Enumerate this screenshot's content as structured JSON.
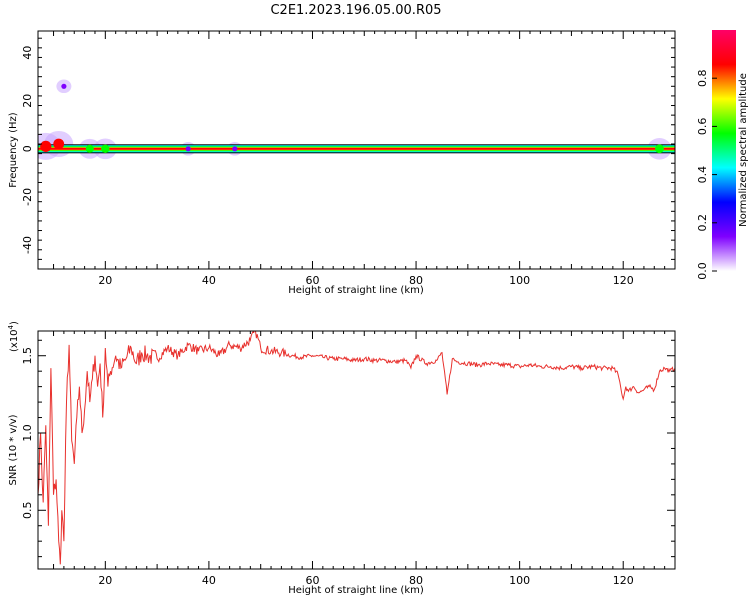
{
  "title": "C2E1.2023.196.05.00.R05",
  "chart_data": [
    {
      "type": "heatmap",
      "xlabel": "Height of straight line (km)",
      "ylabel": "Frequency (Hz)",
      "xlim": [
        7,
        130
      ],
      "ylim": [
        -50,
        49
      ],
      "xticks": [
        20,
        40,
        60,
        80,
        100,
        120
      ],
      "yticks": [
        40,
        20,
        0,
        -20,
        -40
      ],
      "colorbar": {
        "label": "Normalized spectral amplitude",
        "range": [
          0,
          1
        ],
        "ticks": [
          "0.0",
          "0.2",
          "0.4",
          "0.6",
          "0.8"
        ],
        "colors": [
          "#ffffff",
          "#7f00ff",
          "#0000ff",
          "#00ffff",
          "#00ff00",
          "#ffff00",
          "#ff0000",
          "#ff0066"
        ]
      },
      "main_band": {
        "frequency": 0,
        "x_range": [
          7,
          130
        ],
        "amplitude": 1.0
      },
      "features": [
        {
          "x": 8.5,
          "frequency": 1,
          "amplitude": 0.9
        },
        {
          "x": 11,
          "frequency": 2,
          "amplitude": 0.85
        },
        {
          "x": 12,
          "frequency": 26,
          "amplitude": 0.15
        },
        {
          "x": 17,
          "frequency": 0,
          "amplitude": 0.5
        },
        {
          "x": 20,
          "frequency": 0,
          "amplitude": 0.55
        },
        {
          "x": 36,
          "frequency": 0,
          "amplitude": 0.15
        },
        {
          "x": 45,
          "frequency": 0,
          "amplitude": 0.15
        },
        {
          "x": 127,
          "frequency": 0,
          "amplitude": 0.6
        }
      ]
    },
    {
      "type": "line",
      "xlabel": "Height of straight line (km)",
      "ylabel": "SNR (10 * v/v)",
      "y_multiplier": "(x10",
      "y_multiplier_exp": "4",
      "y_multiplier_close": ")",
      "xlim": [
        7,
        130
      ],
      "ylim": [
        0.12,
        1.66
      ],
      "xticks": [
        20,
        40,
        60,
        80,
        100,
        120
      ],
      "yticks": [
        "0.5",
        "1.0",
        "1.5"
      ],
      "line_color": "#e8312d",
      "series": [
        {
          "x": [
            7.0,
            7.5,
            8.0,
            8.5,
            9.0,
            9.5,
            10.0,
            10.5,
            11.0,
            11.3,
            11.6,
            12.0,
            12.5,
            13.0,
            13.5,
            14.0,
            14.5,
            15.0,
            15.5,
            16.0,
            16.5,
            17.0,
            17.5,
            18.0,
            18.5,
            19.0,
            19.5,
            20.0,
            20.5,
            21.0,
            22.0,
            23.0,
            24.0,
            25.0,
            26.0,
            27.0,
            28.0,
            30.0,
            32.0,
            34.0,
            36.0,
            38.0,
            40.0,
            42.0,
            44.0,
            46.0,
            48.0,
            49.0,
            50.0,
            52.0,
            54.0,
            56.0,
            58.0,
            60.0,
            62.0,
            64.0,
            66.0,
            68.0,
            70.0,
            72.0,
            74.0,
            76.0,
            78.0,
            79.0,
            80.0,
            82.0,
            84.0,
            85.0,
            86.0,
            87.0,
            88.0,
            90.0,
            92.0,
            94.0,
            96.0,
            98.0,
            100.0,
            102.0,
            104.0,
            106.0,
            108.0,
            110.0,
            112.0,
            114.0,
            116.0,
            118.0,
            119.0,
            119.5,
            120.0,
            120.5,
            121.0,
            122.0,
            123.0,
            124.0,
            125.0,
            126.0,
            127.0,
            128.0,
            129.0,
            130.0
          ],
          "values": [
            0.6,
            1.0,
            0.55,
            1.05,
            0.4,
            1.42,
            0.6,
            0.7,
            0.3,
            0.15,
            0.5,
            0.3,
            1.2,
            1.57,
            0.95,
            0.8,
            1.1,
            1.3,
            1.0,
            1.15,
            1.4,
            1.2,
            1.35,
            1.5,
            1.3,
            1.45,
            1.1,
            1.55,
            1.3,
            1.4,
            1.5,
            1.42,
            1.48,
            1.55,
            1.45,
            1.52,
            1.5,
            1.48,
            1.55,
            1.5,
            1.57,
            1.53,
            1.55,
            1.5,
            1.57,
            1.55,
            1.6,
            1.66,
            1.55,
            1.53,
            1.52,
            1.5,
            1.49,
            1.5,
            1.49,
            1.48,
            1.48,
            1.47,
            1.48,
            1.47,
            1.47,
            1.46,
            1.47,
            1.42,
            1.5,
            1.45,
            1.47,
            1.52,
            1.25,
            1.48,
            1.46,
            1.45,
            1.44,
            1.45,
            1.44,
            1.44,
            1.43,
            1.44,
            1.43,
            1.43,
            1.42,
            1.43,
            1.42,
            1.43,
            1.42,
            1.42,
            1.38,
            1.3,
            1.22,
            1.3,
            1.27,
            1.3,
            1.26,
            1.28,
            1.3,
            1.28,
            1.4,
            1.42,
            1.4,
            1.42
          ]
        }
      ]
    }
  ]
}
